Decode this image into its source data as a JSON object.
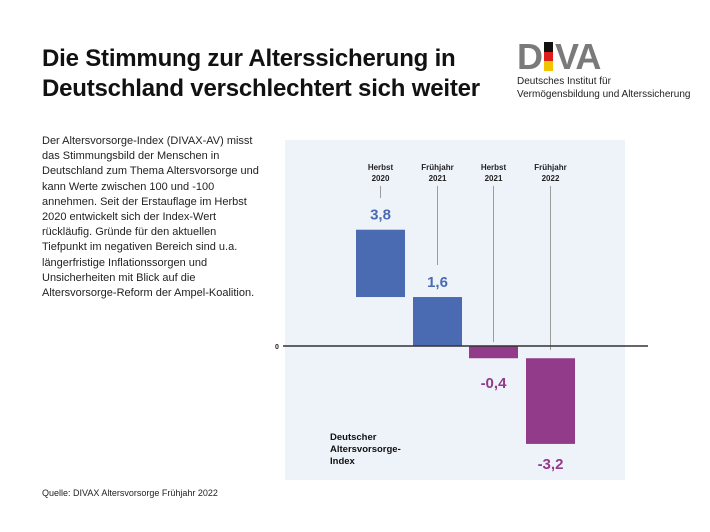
{
  "header": {
    "title_line1": "Die Stimmung zur Alterssicherung in",
    "title_line2": "Deutschland verschlechtert sich weiter"
  },
  "logo": {
    "letters": [
      "D",
      "I",
      "VA"
    ],
    "flag_colors": [
      "#111111",
      "#dd1c1c",
      "#f2c300"
    ],
    "subtitle_line1": "Deutsches Institut für",
    "subtitle_line2": "Vermögensbildung und Alterssicherung"
  },
  "description": "Der Altersvorsorge-Index (DIVAX-AV) misst das Stimmungsbild der Menschen in Deutschland zum Thema Altersvorsorge und kann Werte zwischen 100 und -100 annehmen. Seit der Erstauflage im Herbst 2020 entwickelt sich der Index-Wert rückläufig. Gründe für den aktuellen Tiefpunkt im negativen Bereich sind u.a. längerfristige Inflationssorgen und Unsicherheiten mit Blick auf die Altersvorsorge-Reform der Ampel-Koalition.",
  "source": "Quelle: DIVAX Altersvorsorge Frühjahr 2022",
  "colors": {
    "positive": "#4a6ab2",
    "negative": "#923b8a",
    "panel": "#eef3fa",
    "axis": "#333333",
    "leader": "#888888"
  },
  "chart_data": {
    "type": "bar",
    "subtype": "waterfall",
    "title": "Deutscher Altersvorsorge-Index",
    "legend_label": [
      "Deutscher",
      "Altersvorsorge-",
      "Index"
    ],
    "categories": [
      [
        "Herbst",
        "2020"
      ],
      [
        "Frühjahr",
        "2021"
      ],
      [
        "Herbst",
        "2021"
      ],
      [
        "Frühjahr",
        "2022"
      ]
    ],
    "values": [
      3.8,
      1.6,
      -0.4,
      -3.2
    ],
    "value_labels": [
      "3,8",
      "1,6",
      "-0,4",
      "-3,2"
    ],
    "bar_ranges": [
      [
        1.6,
        3.8
      ],
      [
        0,
        1.6
      ],
      [
        -0.4,
        0
      ],
      [
        -3.2,
        -0.4
      ]
    ],
    "zero_label": "0",
    "ylim": [
      -4.2,
      6.8
    ],
    "grid": false
  }
}
